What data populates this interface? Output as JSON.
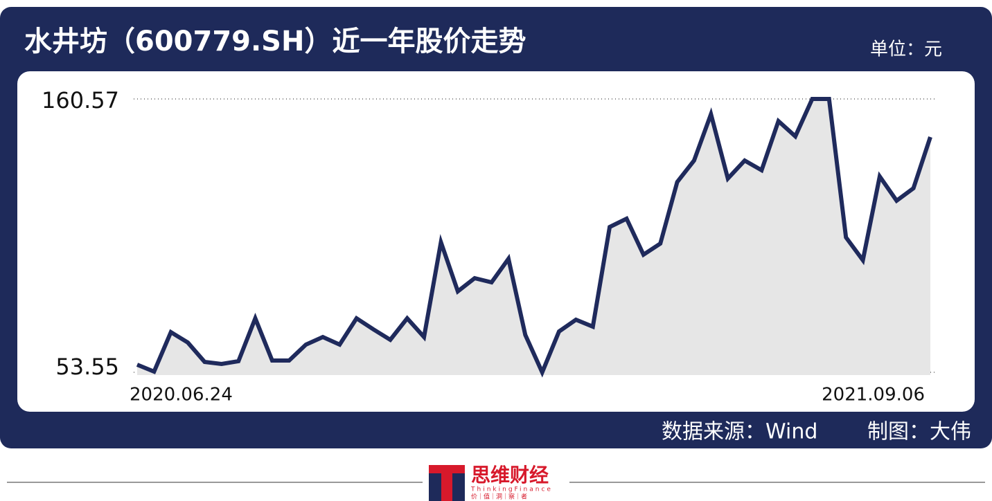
{
  "chart_data": {
    "type": "line",
    "title": "水井坊（600779.SH）近一年股价走势",
    "unit": "单位：元",
    "source": "数据来源：Wind",
    "author": "制图：大伟",
    "logo": {
      "name": "思维财经",
      "english": "ThinkingFinance",
      "slogan": "价｜值｜洞｜察｜者"
    },
    "categories": [
      "2020.06.24",
      null,
      null,
      null,
      null,
      null,
      null,
      null,
      null,
      null,
      null,
      null,
      null,
      null,
      null,
      null,
      null,
      null,
      null,
      null,
      null,
      null,
      null,
      null,
      null,
      null,
      null,
      null,
      null,
      null,
      null,
      null,
      null,
      null,
      null,
      null,
      null,
      null,
      null,
      null,
      null,
      null,
      null,
      null,
      null,
      null,
      null,
      "2021.09.06"
    ],
    "values": [
      56.53,
      53.82,
      69.26,
      65.2,
      57.61,
      56.8,
      57.88,
      74.68,
      58.16,
      58.16,
      64.39,
      67.37,
      64.39,
      74.68,
      70.35,
      66.28,
      74.68,
      67.37,
      104.49,
      85.25,
      90.4,
      88.77,
      97.98,
      68.18,
      53.55,
      69.54,
      74.14,
      71.43,
      110.45,
      113.7,
      99.61,
      103.94,
      128.06,
      136.46,
      154.61,
      129.41,
      136.46,
      132.66,
      151.9,
      145.94,
      160.57,
      160.57,
      106.38,
      97.44,
      130.23,
      120.74,
      125.62,
      145.67
    ],
    "color": "#1f2a5c",
    "area_color": "#e6e6e6",
    "ylim": [
      53.55,
      160.57
    ],
    "yticks": [
      53.55,
      160.57
    ],
    "grid": true
  }
}
